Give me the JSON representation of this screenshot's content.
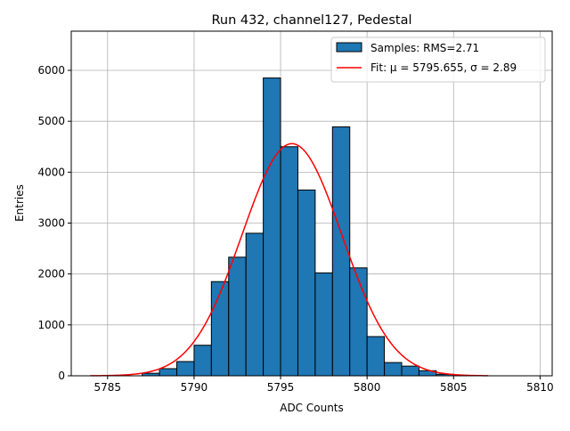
{
  "chart_data": {
    "type": "bar",
    "title": "Run 432, channel127, Pedestal",
    "xlabel": "ADC Counts",
    "ylabel": "Entries",
    "xlim": [
      5782.9,
      5810.7
    ],
    "ylim": [
      0,
      6770
    ],
    "xticks": [
      5785,
      5790,
      5795,
      5800,
      5805,
      5810
    ],
    "yticks": [
      0,
      1000,
      2000,
      3000,
      4000,
      5000,
      6000
    ],
    "grid": true,
    "legend_position": "top-right",
    "bins_left": [
      5787,
      5788,
      5789,
      5790,
      5791,
      5792,
      5793,
      5794,
      5795,
      5796,
      5797,
      5798,
      5799,
      5800,
      5801,
      5802,
      5803,
      5804
    ],
    "bin_width": 1,
    "values": [
      50,
      140,
      280,
      600,
      1850,
      2330,
      2800,
      5850,
      4500,
      3650,
      2020,
      4890,
      2120,
      770,
      260,
      190,
      100,
      30
    ],
    "series": [
      {
        "name": "Samples: RMS=2.71",
        "kind": "histogram",
        "color": "#1f77b4"
      },
      {
        "name": "Fit: μ = 5795.655, σ = 2.89",
        "kind": "gaussian",
        "color": "#ff0000",
        "mu": 5795.655,
        "sigma": 2.89,
        "amplitude": 4560,
        "x_range": [
          5784,
          5807
        ]
      }
    ]
  }
}
